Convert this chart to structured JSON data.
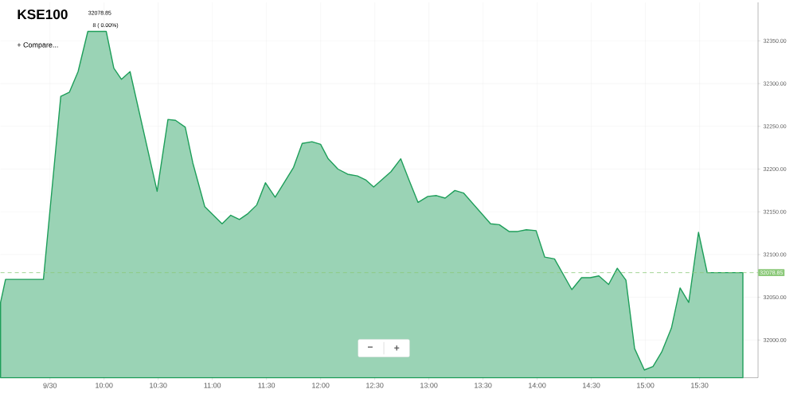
{
  "chart_data": {
    "type": "area",
    "title": "KSE100",
    "annotations": [
      "32078.85",
      "8 ( 0.00%)",
      "+ Compare...",
      "−",
      "+"
    ],
    "xlim": [
      9.044,
      16.04
    ],
    "ylim": [
      31956,
      32395
    ],
    "xticks": [
      {
        "value": 9.5,
        "label": "9/30"
      },
      {
        "value": 10,
        "label": "10:00"
      },
      {
        "value": 10.5,
        "label": "10:30"
      },
      {
        "value": 11,
        "label": "11:00"
      },
      {
        "value": 11.5,
        "label": "11:30"
      },
      {
        "value": 12,
        "label": "12:00"
      },
      {
        "value": 12.5,
        "label": "12:30"
      },
      {
        "value": 13,
        "label": "13:00"
      },
      {
        "value": 13.5,
        "label": "13:30"
      },
      {
        "value": 14,
        "label": "14:00"
      },
      {
        "value": 14.5,
        "label": "14:30"
      },
      {
        "value": 15,
        "label": "15:00"
      },
      {
        "value": 15.5,
        "label": "15:30"
      }
    ],
    "yticks": [
      {
        "value": 32000,
        "label": "32000.00"
      },
      {
        "value": 32050,
        "label": "32050.00"
      },
      {
        "value": 32100,
        "label": "32100.00"
      },
      {
        "value": 32150,
        "label": "32150.00"
      },
      {
        "value": 32200,
        "label": "32200.00"
      },
      {
        "value": 32250,
        "label": "32250.00"
      },
      {
        "value": 32300,
        "label": "32300.00"
      },
      {
        "value": 32350,
        "label": "32350.00"
      }
    ],
    "grid": true,
    "ref_lines": [
      {
        "axis": "y",
        "value": 32078.85,
        "label": "32078.85",
        "color": "#8cc97a",
        "line_style": "dashed"
      }
    ],
    "x": [
      9.044,
      9.09,
      9.44,
      9.6,
      9.68,
      9.76,
      9.85,
      10.02,
      10.09,
      10.16,
      10.24,
      10.49,
      10.59,
      10.66,
      10.75,
      10.82,
      10.93,
      11.09,
      11.17,
      11.25,
      11.33,
      11.41,
      11.49,
      11.58,
      11.75,
      11.83,
      11.92,
      12.0,
      12.07,
      12.16,
      12.25,
      12.34,
      12.42,
      12.49,
      12.65,
      12.74,
      12.82,
      12.9,
      12.99,
      13.07,
      13.15,
      13.24,
      13.32,
      13.57,
      13.65,
      13.74,
      13.82,
      13.9,
      13.99,
      14.07,
      14.16,
      14.32,
      14.41,
      14.49,
      14.57,
      14.66,
      14.74,
      14.82,
      14.9,
      14.99,
      15.07,
      15.15,
      15.24,
      15.32,
      15.4,
      15.49,
      15.57,
      15.9
    ],
    "series": [
      {
        "color": "#1e9e5a",
        "values": [
          32044,
          32071,
          32071,
          32285,
          32290,
          32314,
          32361,
          32361,
          32318,
          32305,
          32314,
          32174,
          32258,
          32257,
          32249,
          32207,
          32156,
          32136,
          32146,
          32141,
          32148,
          32158,
          32184,
          32167,
          32202,
          32230,
          32232,
          32229,
          32212,
          32200,
          32194,
          32192,
          32187,
          32179,
          32197,
          32212,
          32186,
          32161,
          32168,
          32169,
          32166,
          32175,
          32172,
          32136,
          32135,
          32127,
          32127,
          32129,
          32128,
          32097,
          32095,
          32059,
          32073,
          32073,
          32075,
          32065,
          32084,
          32070,
          31990,
          31965,
          31969,
          31986,
          32014,
          32061,
          32044,
          32126,
          32079,
          32078.85
        ]
      }
    ]
  }
}
